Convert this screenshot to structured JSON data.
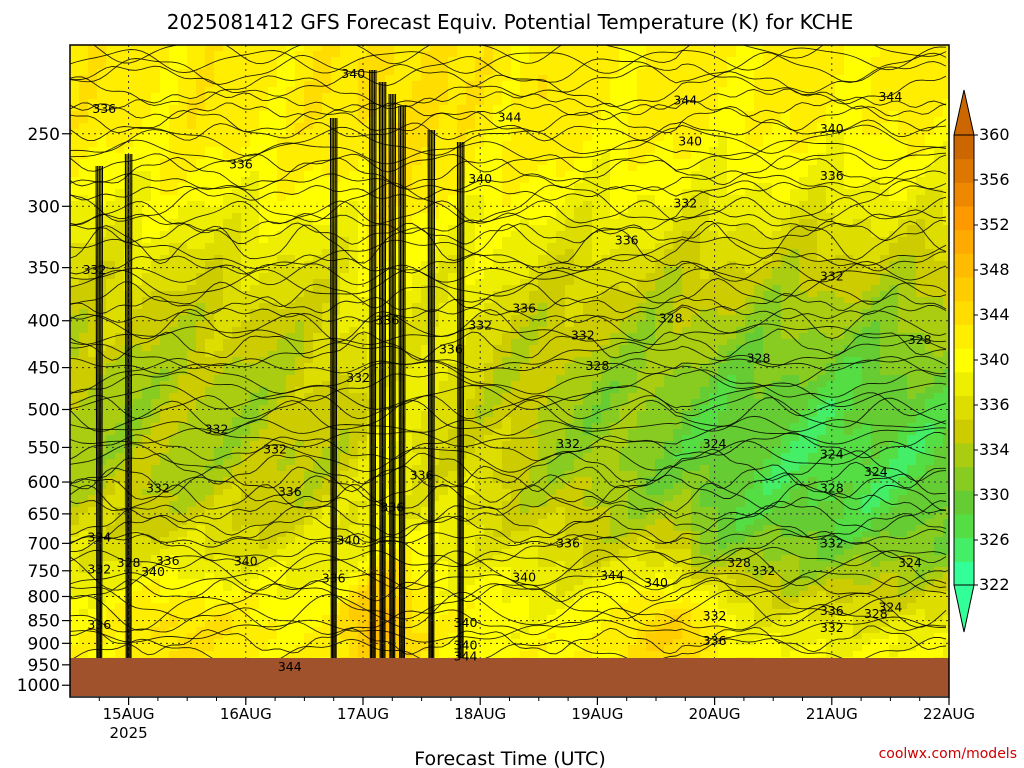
{
  "chart_data": {
    "type": "heatmap",
    "title": "2025081412 GFS Forecast Equiv. Potential Temperature (K) for KCHE",
    "xlabel": "Forecast Time (UTC)",
    "credit": "coolwx.com/models",
    "pressure_ticks": [
      "250",
      "300",
      "350",
      "400",
      "450",
      "500",
      "550",
      "600",
      "650",
      "700",
      "750",
      "800",
      "850",
      "900",
      "950",
      "1000"
    ],
    "pressure_values": [
      250,
      300,
      350,
      400,
      450,
      500,
      550,
      600,
      650,
      700,
      750,
      800,
      850,
      900,
      950,
      1000
    ],
    "ylim": [
      200,
      1030
    ],
    "x_ticks": [
      "15AUG",
      "16AUG",
      "17AUG",
      "18AUG",
      "19AUG",
      "20AUG",
      "21AUG",
      "22AUG"
    ],
    "x_year": "2025",
    "xlim": [
      "2025-08-14 12Z",
      "2025-08-22 00Z"
    ],
    "colorbar": {
      "labels": [
        "322",
        "326",
        "330",
        "334",
        "336",
        "340",
        "344",
        "348",
        "352",
        "356",
        "360"
      ],
      "levels": [
        322,
        324,
        326,
        328,
        330,
        332,
        334,
        336,
        338,
        340,
        342,
        344,
        346,
        348,
        350,
        352,
        354,
        356,
        358,
        360
      ],
      "colors": [
        "#33ff99",
        "#44ee66",
        "#55dd44",
        "#66cc33",
        "#88cc22",
        "#aacc11",
        "#cccc00",
        "#dddd00",
        "#eeee00",
        "#ffff00",
        "#ffee00",
        "#ffdd00",
        "#ffcc00",
        "#ffbb00",
        "#ffaa00",
        "#ff9900",
        "#ee8800",
        "#dd7700",
        "#cc6600"
      ]
    },
    "ground_color": "#a0522d",
    "contour_labels": [
      {
        "text": "340",
        "t": "2025-08-16 22Z",
        "p": 215
      },
      {
        "text": "336",
        "t": "2025-08-14 19Z",
        "p": 235
      },
      {
        "text": "344",
        "t": "2025-08-18 06Z",
        "p": 240
      },
      {
        "text": "344",
        "t": "2025-08-19 18Z",
        "p": 230
      },
      {
        "text": "344",
        "t": "2025-08-21 12Z",
        "p": 228
      },
      {
        "text": "340",
        "t": "2025-08-19 19Z",
        "p": 255
      },
      {
        "text": "340",
        "t": "2025-08-20 24Z",
        "p": 247
      },
      {
        "text": "336",
        "t": "2025-08-15 23Z",
        "p": 270
      },
      {
        "text": "340",
        "t": "2025-08-18 00Z",
        "p": 280
      },
      {
        "text": "336",
        "t": "2025-08-21 00Z",
        "p": 278
      },
      {
        "text": "332",
        "t": "2025-08-19 18Z",
        "p": 298
      },
      {
        "text": "336",
        "t": "2025-08-19 06Z",
        "p": 327
      },
      {
        "text": "332",
        "t": "2025-08-14 17Z",
        "p": 352
      },
      {
        "text": "332",
        "t": "2025-08-21 00Z",
        "p": 358
      },
      {
        "text": "336",
        "t": "2025-08-18 09Z",
        "p": 388
      },
      {
        "text": "336",
        "t": "2025-08-17 05Z",
        "p": 400
      },
      {
        "text": "332",
        "t": "2025-08-18 00Z",
        "p": 405
      },
      {
        "text": "328",
        "t": "2025-08-19 15Z",
        "p": 398
      },
      {
        "text": "332",
        "t": "2025-08-18 21Z",
        "p": 415
      },
      {
        "text": "328",
        "t": "2025-08-21 18Z",
        "p": 420
      },
      {
        "text": "336",
        "t": "2025-08-17 18Z",
        "p": 430
      },
      {
        "text": "328",
        "t": "2025-08-20 09Z",
        "p": 440
      },
      {
        "text": "328",
        "t": "2025-08-19 00Z",
        "p": 448
      },
      {
        "text": "332",
        "t": "2025-08-16 23Z",
        "p": 462
      },
      {
        "text": "332",
        "t": "2025-08-15 18Z",
        "p": 526
      },
      {
        "text": "324",
        "t": "2025-08-20 00Z",
        "p": 545
      },
      {
        "text": "332",
        "t": "2025-08-16 06Z",
        "p": 553
      },
      {
        "text": "332",
        "t": "2025-08-18 18Z",
        "p": 545
      },
      {
        "text": "324",
        "t": "2025-08-20 24Z",
        "p": 560
      },
      {
        "text": "324",
        "t": "2025-08-21 09Z",
        "p": 585
      },
      {
        "text": "336",
        "t": "2025-08-17 12Z",
        "p": 590
      },
      {
        "text": "332",
        "t": "2025-08-15 06Z",
        "p": 610
      },
      {
        "text": "336",
        "t": "2025-08-16 09Z",
        "p": 615
      },
      {
        "text": "328",
        "t": "2025-08-21 00Z",
        "p": 610
      },
      {
        "text": "336",
        "t": "2025-08-17 06Z",
        "p": 640
      },
      {
        "text": "324",
        "t": "2025-08-14 18Z",
        "p": 690
      },
      {
        "text": "340",
        "t": "2025-08-16 21Z",
        "p": 695
      },
      {
        "text": "336",
        "t": "2025-08-18 18Z",
        "p": 700
      },
      {
        "text": "332",
        "t": "2025-08-21 00Z",
        "p": 700
      },
      {
        "text": "328",
        "t": "2025-08-15 00Z",
        "p": 735
      },
      {
        "text": "336",
        "t": "2025-08-15 08Z",
        "p": 732
      },
      {
        "text": "340",
        "t": "2025-08-16 00Z",
        "p": 733
      },
      {
        "text": "328",
        "t": "2025-08-20 05Z",
        "p": 735
      },
      {
        "text": "324",
        "t": "2025-08-21 16Z",
        "p": 735
      },
      {
        "text": "332",
        "t": "2025-08-14 18Z",
        "p": 748
      },
      {
        "text": "340",
        "t": "2025-08-15 05Z",
        "p": 752
      },
      {
        "text": "332",
        "t": "2025-08-20 10Z",
        "p": 750
      },
      {
        "text": "344",
        "t": "2025-08-19 03Z",
        "p": 760
      },
      {
        "text": "340",
        "t": "2025-08-18 09Z",
        "p": 763
      },
      {
        "text": "336",
        "t": "2025-08-16 18Z",
        "p": 765
      },
      {
        "text": "340",
        "t": "2025-08-19 12Z",
        "p": 773
      },
      {
        "text": "324",
        "t": "2025-08-21 12Z",
        "p": 823
      },
      {
        "text": "336",
        "t": "2025-08-21 00Z",
        "p": 830
      },
      {
        "text": "328",
        "t": "2025-08-21 09Z",
        "p": 836
      },
      {
        "text": "332",
        "t": "2025-08-20 00Z",
        "p": 840
      },
      {
        "text": "336",
        "t": "2025-08-14 18Z",
        "p": 860
      },
      {
        "text": "340",
        "t": "2025-08-17 21Z",
        "p": 855
      },
      {
        "text": "332",
        "t": "2025-08-21 00Z",
        "p": 866
      },
      {
        "text": "336",
        "t": "2025-08-20 00Z",
        "p": 895
      },
      {
        "text": "340",
        "t": "2025-08-17 21Z",
        "p": 905
      },
      {
        "text": "344",
        "t": "2025-08-16 09Z",
        "p": 955
      },
      {
        "text": "344",
        "t": "2025-08-17 21Z",
        "p": 930
      }
    ]
  }
}
